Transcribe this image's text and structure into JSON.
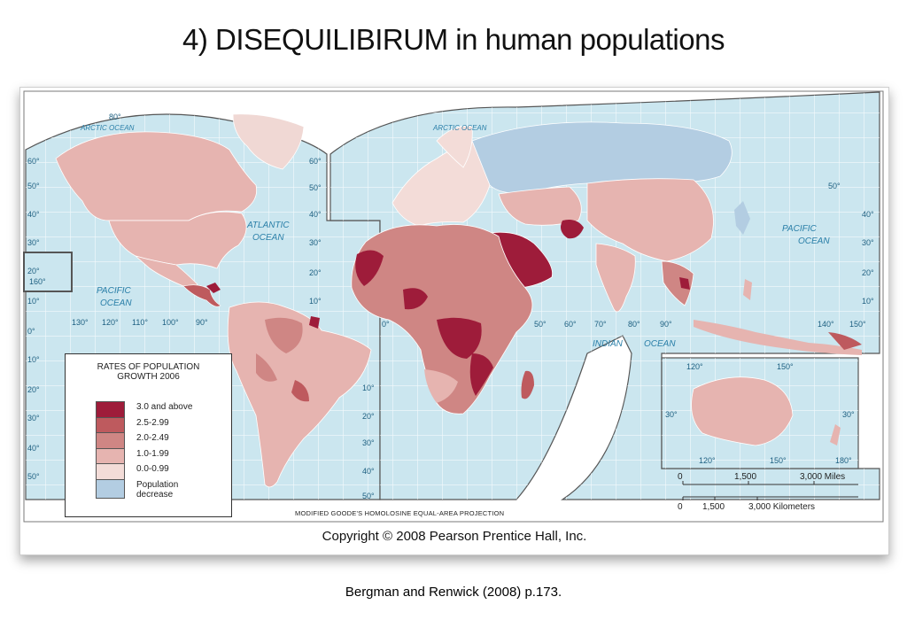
{
  "title": "4) DISEQUILIBIRUM in human populations",
  "citation": "Bergman and Renwick (2008) p.173.",
  "map": {
    "copyright": "Copyright © 2008 Pearson Prentice Hall, Inc.",
    "projection": "MODIFIED GOODE'S HOMOLOSINE EQUAL-AREA PROJECTION",
    "oceans": {
      "arctic_left": "ARCTIC OCEAN",
      "arctic_right": "ARCTIC OCEAN",
      "atlantic_1": "ATLANTIC",
      "atlantic_2": "OCEAN",
      "pacific_left_1": "PACIFIC",
      "pacific_left_2": "OCEAN",
      "pacific_right_1": "PACIFIC",
      "pacific_right_2": "OCEAN",
      "indian_1": "INDIAN",
      "indian_2": "OCEAN"
    },
    "degree_labels": {
      "top": "80°",
      "left_lat": [
        "60°",
        "50°",
        "40°",
        "30°",
        "20°",
        "10°",
        "0°",
        "10°",
        "20°",
        "30°",
        "40°",
        "50°"
      ],
      "mid_lat": [
        "60°",
        "50°",
        "40°",
        "30°",
        "20°",
        "10°"
      ],
      "lon_bottom": [
        "130°",
        "120°",
        "110°",
        "100°",
        "90°"
      ],
      "lon_160": "160°",
      "sa_lat": [
        "10°",
        "20°",
        "30°",
        "40°",
        "50°"
      ],
      "af_lat": [
        "10°",
        "20°",
        "30°",
        "40°",
        "50°"
      ],
      "lon_right": [
        "0°",
        "50°",
        "60°",
        "70°",
        "80°",
        "90°",
        "140°",
        "150°"
      ],
      "right_lat": [
        "50°",
        "40°",
        "30°",
        "20°",
        "10°"
      ],
      "eq_right": "0°",
      "af_lon": [
        "10°",
        "20°",
        "30°",
        "40°",
        "50°"
      ],
      "india_10": "10°",
      "mid_30": "30°",
      "mid_20": "20°",
      "mid_10": "10°",
      "aus": [
        "120°",
        "150°",
        "30°",
        "30°",
        "120°",
        "150°",
        "180°"
      ]
    }
  },
  "legend": {
    "title_line1": "RATES OF POPULATION",
    "title_line2": "GROWTH 2006",
    "items": [
      {
        "label": "3.0 and above",
        "color": "#9e1c3a"
      },
      {
        "label": "2.5-2.99",
        "color": "#be5a5e"
      },
      {
        "label": "2.0-2.49",
        "color": "#cf8684"
      },
      {
        "label": "1.0-1.99",
        "color": "#e6b4b0"
      },
      {
        "label": "0.0-0.99",
        "color": "#f3dcd8"
      },
      {
        "label": "Population decrease",
        "color": "#b3cde2"
      }
    ]
  },
  "scale": {
    "miles": [
      "0",
      "1,500",
      "3,000 Miles"
    ],
    "km": [
      "0",
      "1,500",
      "3,000 Kilometers"
    ]
  },
  "colors": {
    "ocean": "#cbe6ef",
    "grid": "#ffffff",
    "frame": "#5a5a5a"
  }
}
